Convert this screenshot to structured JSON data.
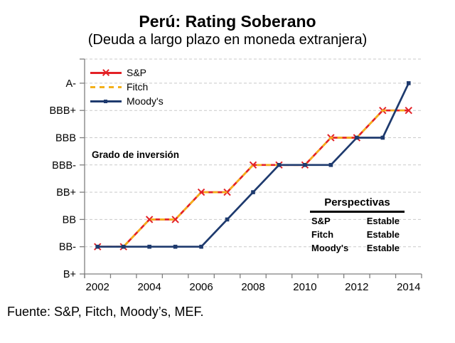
{
  "header": {
    "title": "Perú: Rating Soberano",
    "subtitle": "(Deuda a largo plazo en moneda extranjera)"
  },
  "annotation": {
    "investment_grade_label": "Grado de inversión"
  },
  "perspectivas": {
    "title": "Perspectivas",
    "rows": [
      {
        "agency": "S&P",
        "outlook": "Estable"
      },
      {
        "agency": "Fitch",
        "outlook": "Estable"
      },
      {
        "agency": "Moody's",
        "outlook": "Estable"
      }
    ]
  },
  "footer": {
    "source": "Fuente: S&P, Fitch, Moody’s, MEF."
  },
  "colors": {
    "sp_red": "#e32126",
    "fitch_yellow": "#f4b01b",
    "moodys_navy": "#1e3a6e",
    "gridline": "#c9c9c9",
    "axis": "#7f7f7f",
    "text": "#000000"
  },
  "chart_data": {
    "type": "line",
    "title": "Perú: Rating Soberano",
    "subtitle": "(Deuda a largo plazo en moneda extranjera)",
    "x": [
      2002,
      2003,
      2004,
      2005,
      2006,
      2007,
      2008,
      2009,
      2010,
      2011,
      2012,
      2013,
      2014
    ],
    "x_tick_labels": [
      "2002",
      "2004",
      "2006",
      "2008",
      "2010",
      "2012",
      "2014"
    ],
    "y_categories": [
      "B+",
      "BB-",
      "BB",
      "BB+",
      "BBB-",
      "BBB",
      "BBB+",
      "A-"
    ],
    "ylim": [
      "B+",
      "A-"
    ],
    "grid": true,
    "legend_position": "top-left",
    "annotation": "Grado de inversión",
    "series": [
      {
        "name": "S&P",
        "color": "#e32126",
        "line_style": "solid",
        "marker": "x",
        "values": [
          "BB-",
          "BB-",
          "BB",
          "BB",
          "BB+",
          "BB+",
          "BBB-",
          "BBB-",
          "BBB-",
          "BBB",
          "BBB",
          "BBB+",
          "BBB+"
        ]
      },
      {
        "name": "Fitch",
        "color": "#f4b01b",
        "line_style": "dashed",
        "marker": "none",
        "values": [
          "BB-",
          "BB-",
          "BB",
          "BB",
          "BB+",
          "BB+",
          "BBB-",
          "BBB-",
          "BBB-",
          "BBB",
          "BBB",
          "BBB+",
          "BBB+"
        ]
      },
      {
        "name": "Moody's",
        "color": "#1e3a6e",
        "line_style": "solid",
        "marker": "square",
        "values": [
          "BB-",
          "BB-",
          "BB-",
          "BB-",
          "BB-",
          "BB",
          "BB+",
          "BBB-",
          "BBB-",
          "BBB-",
          "BBB",
          "BBB",
          "A-"
        ]
      }
    ]
  }
}
